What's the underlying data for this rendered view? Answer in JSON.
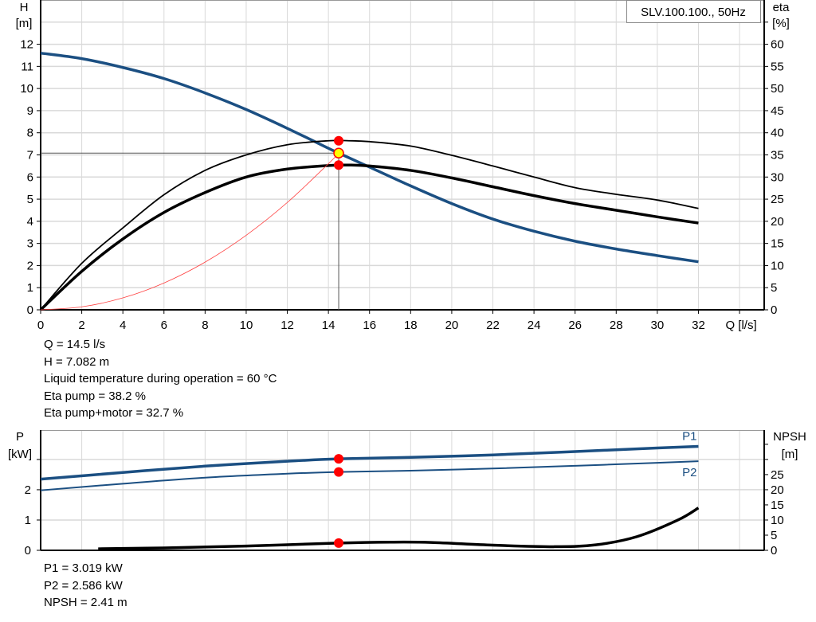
{
  "legend_box": "SLV.100.100., 50Hz",
  "colors": {
    "head": "#1b4f82",
    "efficiency": "#000000",
    "system": "#ff4040",
    "power": "#1b4f82",
    "npsh": "#000000",
    "point": "#ff0000",
    "duty_point": "#ffff00",
    "grid": "#d9d9d9"
  },
  "chart_data": [
    {
      "type": "line",
      "xlabel": "Q [l/s]",
      "ylabel_left": [
        "H",
        "[m]"
      ],
      "ylabel_right": [
        "eta",
        "[%]"
      ],
      "xlim": [
        0,
        35.2
      ],
      "xticks": [
        0,
        2,
        4,
        6,
        8,
        10,
        12,
        14,
        16,
        18,
        20,
        22,
        24,
        26,
        28,
        30,
        32
      ],
      "ylim_left": [
        0,
        14
      ],
      "yticks_left": [
        0,
        1,
        2,
        3,
        4,
        5,
        6,
        7,
        8,
        9,
        10,
        11,
        12
      ],
      "ylim_right": [
        0,
        70
      ],
      "yticks_right": [
        0,
        5,
        10,
        15,
        20,
        25,
        30,
        35,
        40,
        45,
        50,
        55,
        60
      ],
      "grid": true,
      "series": [
        {
          "key": "head",
          "axis": "left",
          "x": [
            0,
            2,
            4,
            6,
            8,
            10,
            12,
            14,
            14.5,
            16,
            18,
            20,
            22,
            24,
            26,
            28,
            30,
            32
          ],
          "y": [
            11.6,
            11.35,
            10.95,
            10.45,
            9.8,
            9.05,
            8.2,
            7.3,
            7.08,
            6.45,
            5.6,
            4.8,
            4.1,
            3.55,
            3.1,
            2.75,
            2.45,
            2.17
          ]
        },
        {
          "key": "eta_pump",
          "axis": "right",
          "x": [
            0,
            2,
            4,
            6,
            8,
            10,
            12,
            14,
            15,
            16,
            18,
            20,
            22,
            24,
            26,
            28,
            30,
            32
          ],
          "y": [
            0,
            10.5,
            18.5,
            26,
            31.5,
            35,
            37.3,
            38.2,
            38.2,
            38,
            37,
            34.9,
            32.5,
            30,
            27.6,
            26.1,
            24.8,
            22.9
          ]
        },
        {
          "key": "eta_pump_motor",
          "axis": "right",
          "x": [
            0,
            2,
            4,
            6,
            8,
            10,
            12,
            14,
            15,
            16,
            18,
            20,
            22,
            24,
            26,
            28,
            30,
            32
          ],
          "y": [
            0,
            8.7,
            16,
            22,
            26.5,
            30,
            31.8,
            32.6,
            32.7,
            32.5,
            31.5,
            29.8,
            27.8,
            25.8,
            24,
            22.5,
            21,
            19.6
          ]
        },
        {
          "key": "system",
          "axis": "left",
          "x": [
            0,
            2,
            4,
            6,
            8,
            10,
            12,
            14,
            14.5
          ],
          "y": [
            0,
            0.135,
            0.539,
            1.212,
            2.155,
            3.368,
            4.85,
            6.601,
            7.082
          ]
        }
      ],
      "duty_point": {
        "Q": 14.5,
        "H": 7.082,
        "eta_pump": 38.2,
        "eta_pump_motor": 32.7
      },
      "readout": [
        "Q = 14.5 l/s",
        "H = 7.082 m",
        "Liquid temperature during operation = 60 °C",
        "Eta pump = 38.2 %",
        "Eta pump+motor = 32.7 %"
      ]
    },
    {
      "type": "line",
      "ylabel_left": [
        "P",
        "[kW]"
      ],
      "ylabel_right": [
        "NPSH",
        "[m]"
      ],
      "xlim": [
        0,
        35.2
      ],
      "ylim_left": [
        0,
        3.97
      ],
      "yticks_left": [
        0,
        1,
        2
      ],
      "ylim_right": [
        0,
        39.7
      ],
      "yticks_right": [
        0,
        5,
        10,
        15,
        20,
        25
      ],
      "grid": true,
      "series": [
        {
          "key": "P1",
          "name": "P1",
          "axis": "left",
          "x": [
            0,
            4,
            8,
            12,
            14.5,
            18,
            22,
            26,
            30,
            32
          ],
          "y": [
            2.35,
            2.57,
            2.78,
            2.94,
            3.019,
            3.07,
            3.15,
            3.26,
            3.38,
            3.43
          ]
        },
        {
          "key": "P2",
          "name": "P2",
          "axis": "left",
          "x": [
            0,
            4,
            8,
            12,
            14.5,
            18,
            22,
            26,
            30,
            32
          ],
          "y": [
            1.98,
            2.2,
            2.4,
            2.53,
            2.586,
            2.63,
            2.7,
            2.79,
            2.89,
            2.94
          ]
        },
        {
          "key": "npsh",
          "axis": "right",
          "x": [
            2.8,
            6,
            10,
            14.5,
            17,
            19,
            22,
            25,
            27,
            29,
            31,
            32
          ],
          "y": [
            0.5,
            0.8,
            1.4,
            2.41,
            2.7,
            2.6,
            1.7,
            1.2,
            1.8,
            4.5,
            10,
            14
          ]
        }
      ],
      "duty_point": {
        "Q": 14.5,
        "P1": 3.019,
        "P2": 2.586,
        "NPSH": 2.41
      },
      "readout": [
        "P1 = 3.019 kW",
        "P2 = 2.586 kW",
        "NPSH = 2.41 m"
      ]
    }
  ]
}
